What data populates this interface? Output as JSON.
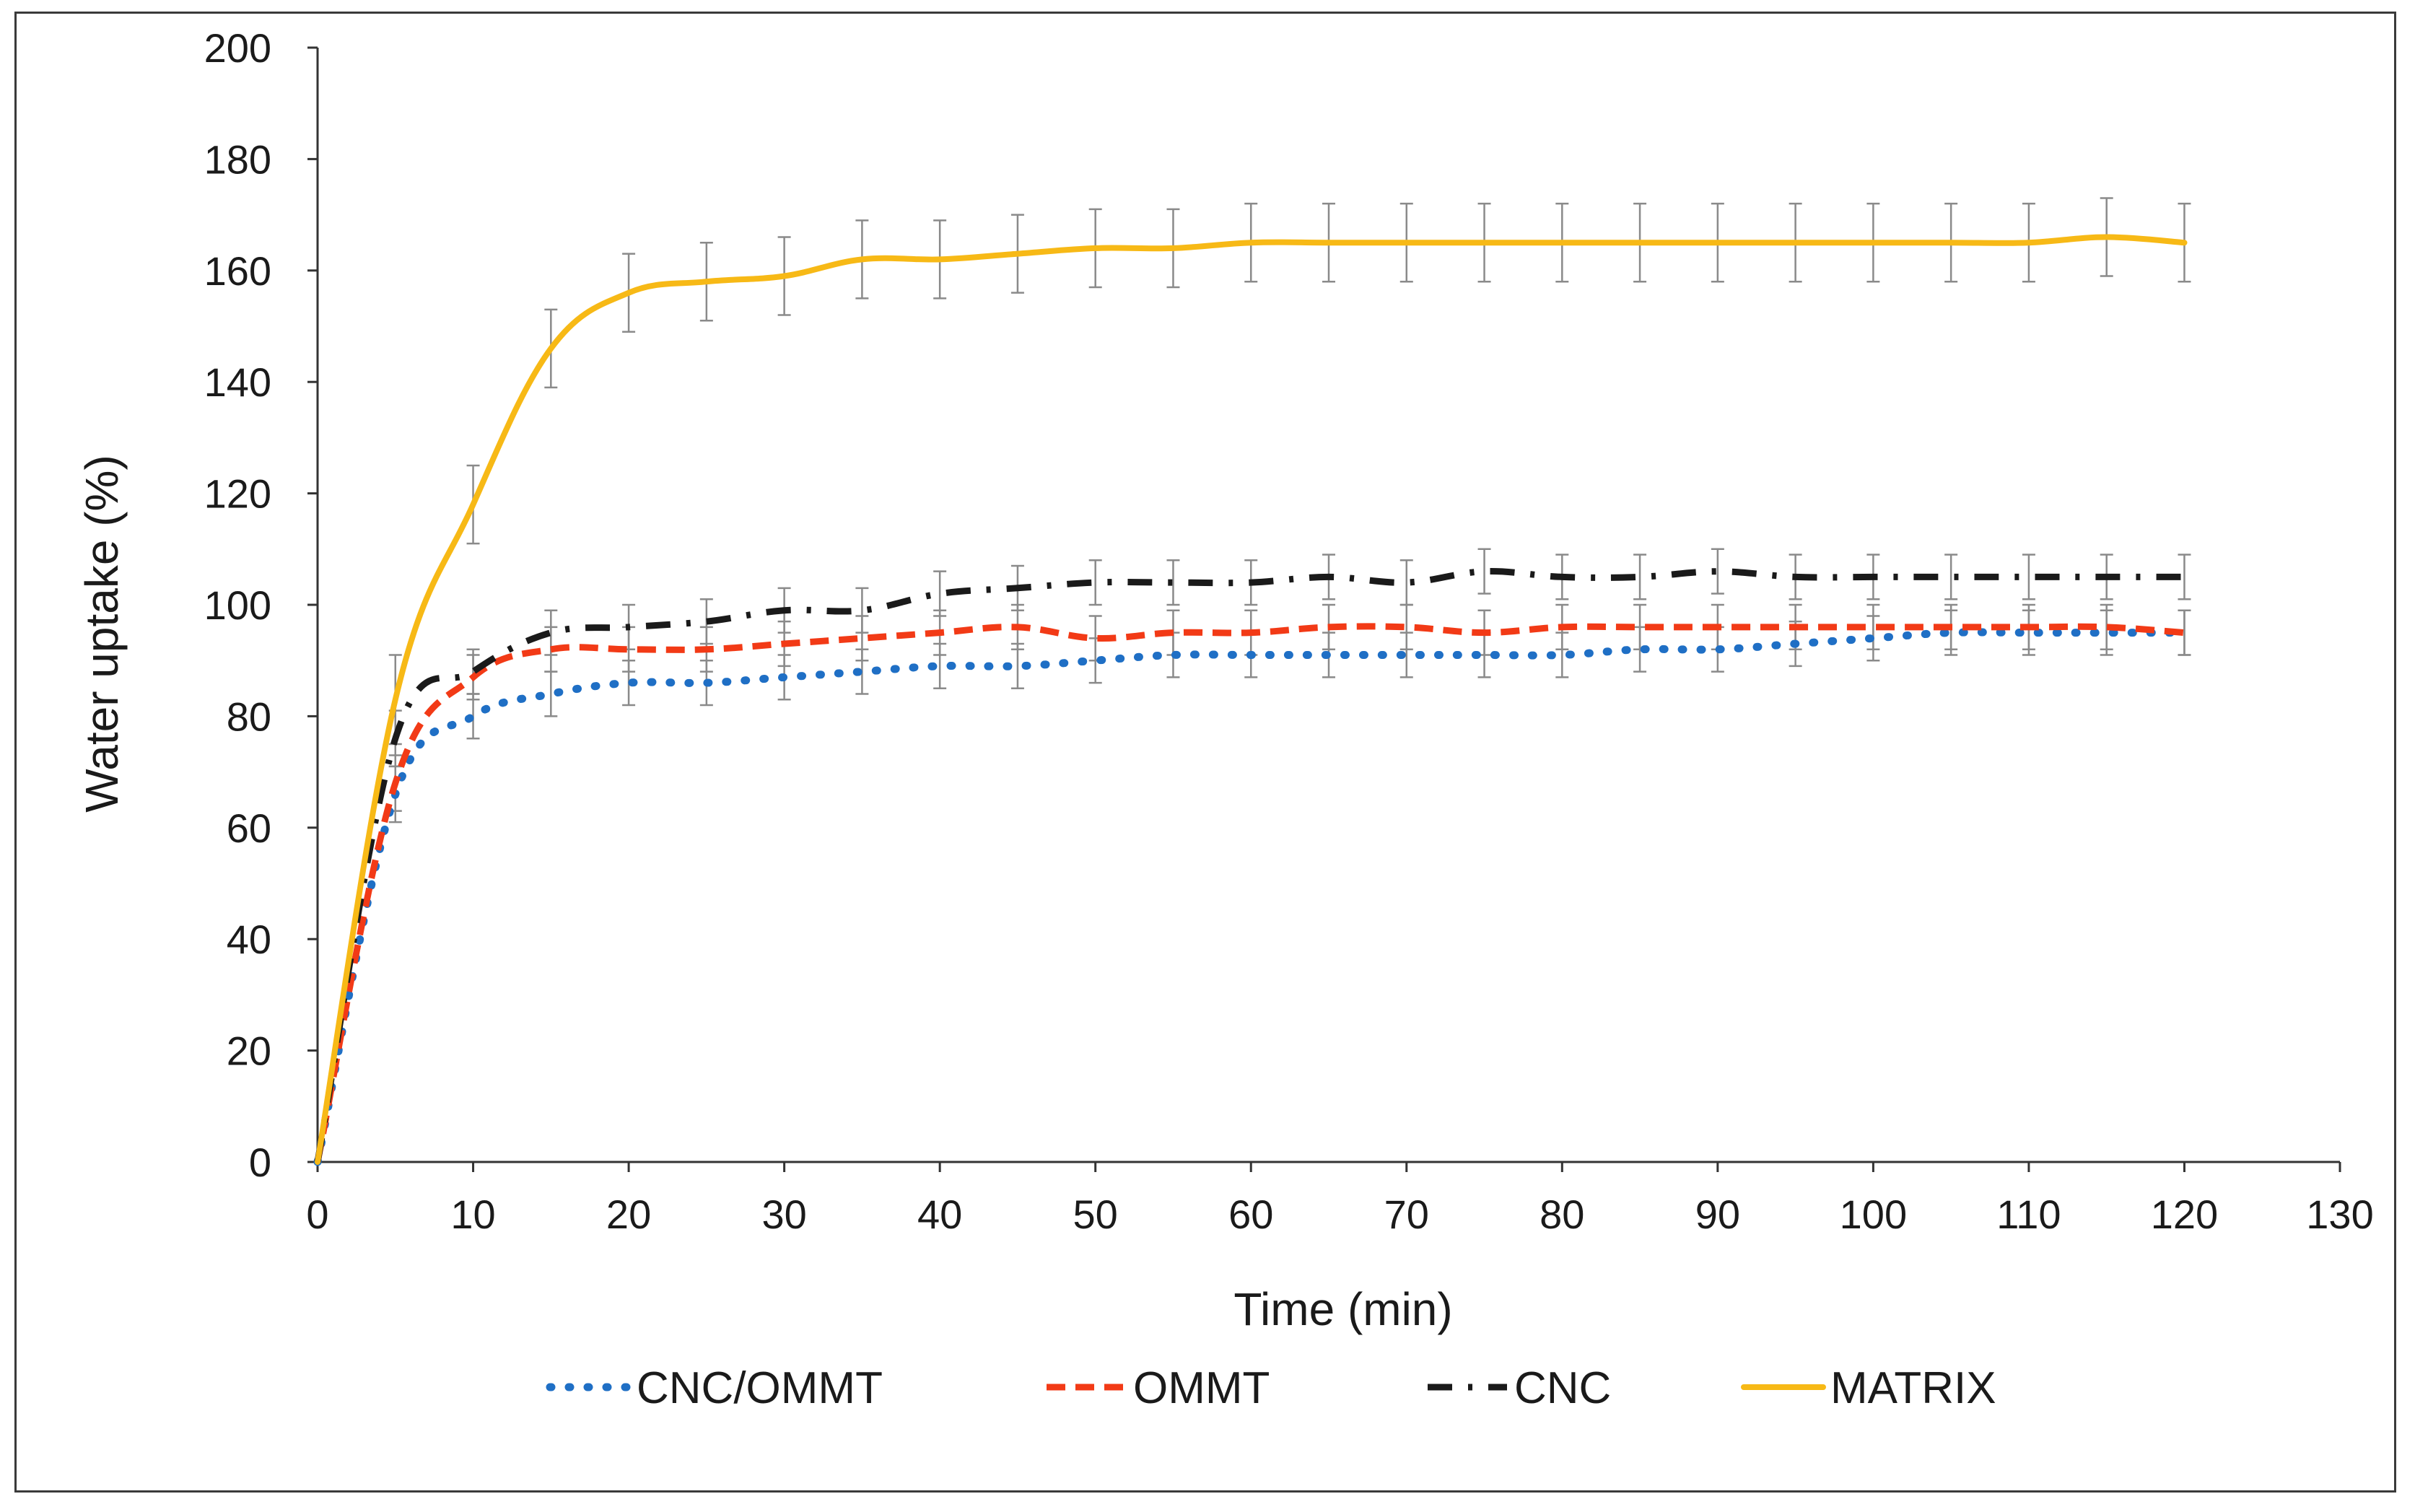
{
  "chart_data": {
    "type": "line",
    "title": "",
    "xlabel": "Time (min)",
    "ylabel": "Water uptake (%)",
    "xlim": [
      0,
      130
    ],
    "ylim": [
      0,
      200
    ],
    "xticks": [
      0,
      10,
      20,
      30,
      40,
      50,
      60,
      70,
      80,
      90,
      100,
      110,
      120,
      130
    ],
    "yticks": [
      0,
      20,
      40,
      60,
      80,
      100,
      120,
      140,
      160,
      180,
      200
    ],
    "grid": false,
    "legend_position": "bottom",
    "x": [
      0,
      5,
      10,
      15,
      20,
      25,
      30,
      35,
      40,
      45,
      50,
      55,
      60,
      65,
      70,
      75,
      80,
      85,
      90,
      95,
      100,
      105,
      110,
      115,
      120
    ],
    "series": [
      {
        "name": "CNC/OMMT",
        "color": "#1f6fc5",
        "style": "dotted",
        "values": [
          0,
          66,
          80,
          84,
          86,
          86,
          87,
          88,
          89,
          89,
          90,
          91,
          91,
          91,
          91,
          91,
          91,
          92,
          92,
          93,
          94,
          95,
          95,
          95,
          95
        ],
        "errors": [
          0,
          5,
          4,
          4,
          4,
          4,
          4,
          4,
          4,
          4,
          4,
          4,
          4,
          4,
          4,
          4,
          4,
          4,
          4,
          4,
          4,
          4,
          4,
          4,
          4
        ]
      },
      {
        "name": "OMMT",
        "color": "#f23a16",
        "style": "dashed",
        "values": [
          0,
          68,
          87,
          92,
          92,
          92,
          93,
          94,
          95,
          96,
          94,
          95,
          95,
          96,
          96,
          95,
          96,
          96,
          96,
          96,
          96,
          96,
          96,
          96,
          95
        ],
        "errors": [
          0,
          5,
          4,
          4,
          4,
          4,
          4,
          4,
          4,
          4,
          4,
          4,
          4,
          4,
          4,
          4,
          4,
          4,
          4,
          4,
          4,
          4,
          4,
          4,
          4
        ]
      },
      {
        "name": "CNC",
        "color": "#1a1a1a",
        "style": "dashdot",
        "values": [
          0,
          76,
          88,
          95,
          96,
          97,
          99,
          99,
          102,
          103,
          104,
          104,
          104,
          105,
          104,
          106,
          105,
          105,
          106,
          105,
          105,
          105,
          105,
          105,
          105
        ],
        "errors": [
          0,
          5,
          4,
          4,
          4,
          4,
          4,
          4,
          4,
          4,
          4,
          4,
          4,
          4,
          4,
          4,
          4,
          4,
          4,
          4,
          4,
          4,
          4,
          4,
          4
        ]
      },
      {
        "name": "MATRIX",
        "color": "#f7b916",
        "style": "solid",
        "values": [
          0,
          83,
          118,
          146,
          156,
          158,
          159,
          162,
          162,
          163,
          164,
          164,
          165,
          165,
          165,
          165,
          165,
          165,
          165,
          165,
          165,
          165,
          165,
          166,
          165
        ],
        "errors": [
          0,
          8,
          7,
          7,
          7,
          7,
          7,
          7,
          7,
          7,
          7,
          7,
          7,
          7,
          7,
          7,
          7,
          7,
          7,
          7,
          7,
          7,
          7,
          7,
          7
        ]
      }
    ]
  }
}
